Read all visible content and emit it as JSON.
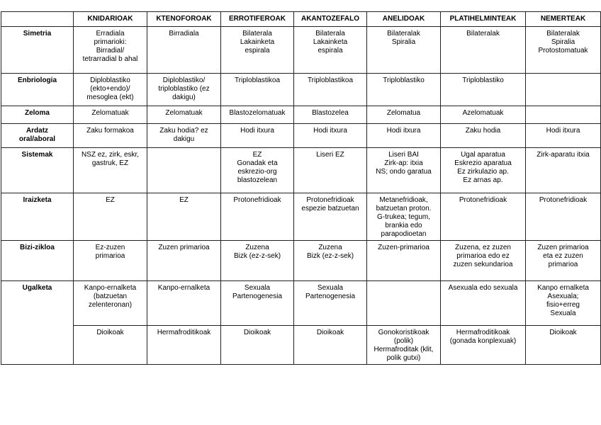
{
  "table": {
    "corner": "",
    "columns": [
      "KNIDARIOAK",
      "KTENOFOROAK",
      "ERROTIFEROAK",
      "AKANTOZEFALO",
      "ANELIDOAK",
      "PLATIHELMINTEAK",
      "NEMERTEAK"
    ],
    "rows": [
      {
        "label": "Simetria",
        "cells": [
          "Erradiala\nprimarioki:\nBirradial/\ntetrarradial b ahal",
          "Birradiala",
          "Bilaterala\nLakainketa\nespirala",
          "Bilaterala\nLakainketa\nespirala",
          "Bilateralak\nSpiralia",
          "Bilateralak",
          "Bilateralak\nSpiralia\nProtostomatuak"
        ]
      },
      {
        "label": "Enbriologia",
        "cells": [
          "Diploblastiko\n(ekto+endo)/\nmesoglea (ekt)",
          "Diploblastiko/\ntriploblastiko (ez\ndakigu)",
          "Triploblastikoa",
          "Triploblastikoa",
          "Triploblastiko",
          "Triploblastiko",
          ""
        ]
      },
      {
        "label": "Zeloma",
        "cells": [
          "Zelomatuak",
          "Zelomatuak",
          "Blastozelomatuak",
          "Blastozelea",
          "Zelomatua",
          "Azelomatuak",
          ""
        ]
      },
      {
        "label": "Ardatz\noral/aboral",
        "cells": [
          "Zaku formakoa",
          "Zaku hodia? ez\ndakigu",
          "Hodi itxura",
          "Hodi itxura",
          "Hodi itxura",
          "Zaku hodia",
          "Hodi itxura"
        ]
      },
      {
        "label": "Sistemak",
        "cells": [
          "NSZ ez, zirk, eskr,\ngastruk, EZ",
          "",
          "EZ\nGonadak eta\neskrezio-org\nblastozelean",
          "Liseri EZ",
          "Liseri BAI\nZirk-ap: itxia\nNS; ondo garatua",
          "Ugal aparatua\nEskrezio aparatua\nEz zirkulazio ap.\nEz arnas ap.",
          "Zirk-aparatu itxia"
        ]
      },
      {
        "label": "Iraizketa",
        "cells": [
          "EZ",
          "EZ",
          "Protonefridioak",
          "Protonefridioak\nespezie batzuetan",
          "Metanefridioak,\nbatzuetan proton.\nG-trukea; tegum,\nbrankia edo\nparapodioetan",
          "Protonefridioak",
          "Protonefridioak"
        ]
      },
      {
        "label": "Bizi-zikloa",
        "cells": [
          "Ez-zuzen\nprimarioa",
          "Zuzen primarioa",
          "Zuzena\nBizk (ez-z-sek)",
          "Zuzena\nBizk (ez-z-sek)",
          "Zuzen-primarioa",
          "Zuzena, ez zuzen\nprimarioa edo ez\nzuzen sekundarioa",
          "Zuzen primarioa\neta ez zuzen\nprimarioa"
        ]
      },
      {
        "label": "Ugalketa",
        "cells": [
          "Kanpo-ernalketa\n(batzuetan\nzelenteronan)",
          "Kanpo-ernalketa",
          "Sexuala\nPartenogenesia",
          "Sexuala\nPartenogenesia",
          "",
          "Asexuala edo sexuala",
          "Kanpo ernalketa\nAsexuala;\nfisio+erreg\nSexuala"
        ]
      },
      {
        "label": "",
        "cells": [
          "Dioikoak",
          "Hermafroditikoak",
          "Dioikoak",
          "Dioikoak",
          "Gonokoristikoak\n(polik)\nHermafroditak (klit,\npolik gutxi)",
          "Hermafroditikoak\n(gonada konplexuak)",
          "Dioikoak"
        ]
      }
    ]
  }
}
